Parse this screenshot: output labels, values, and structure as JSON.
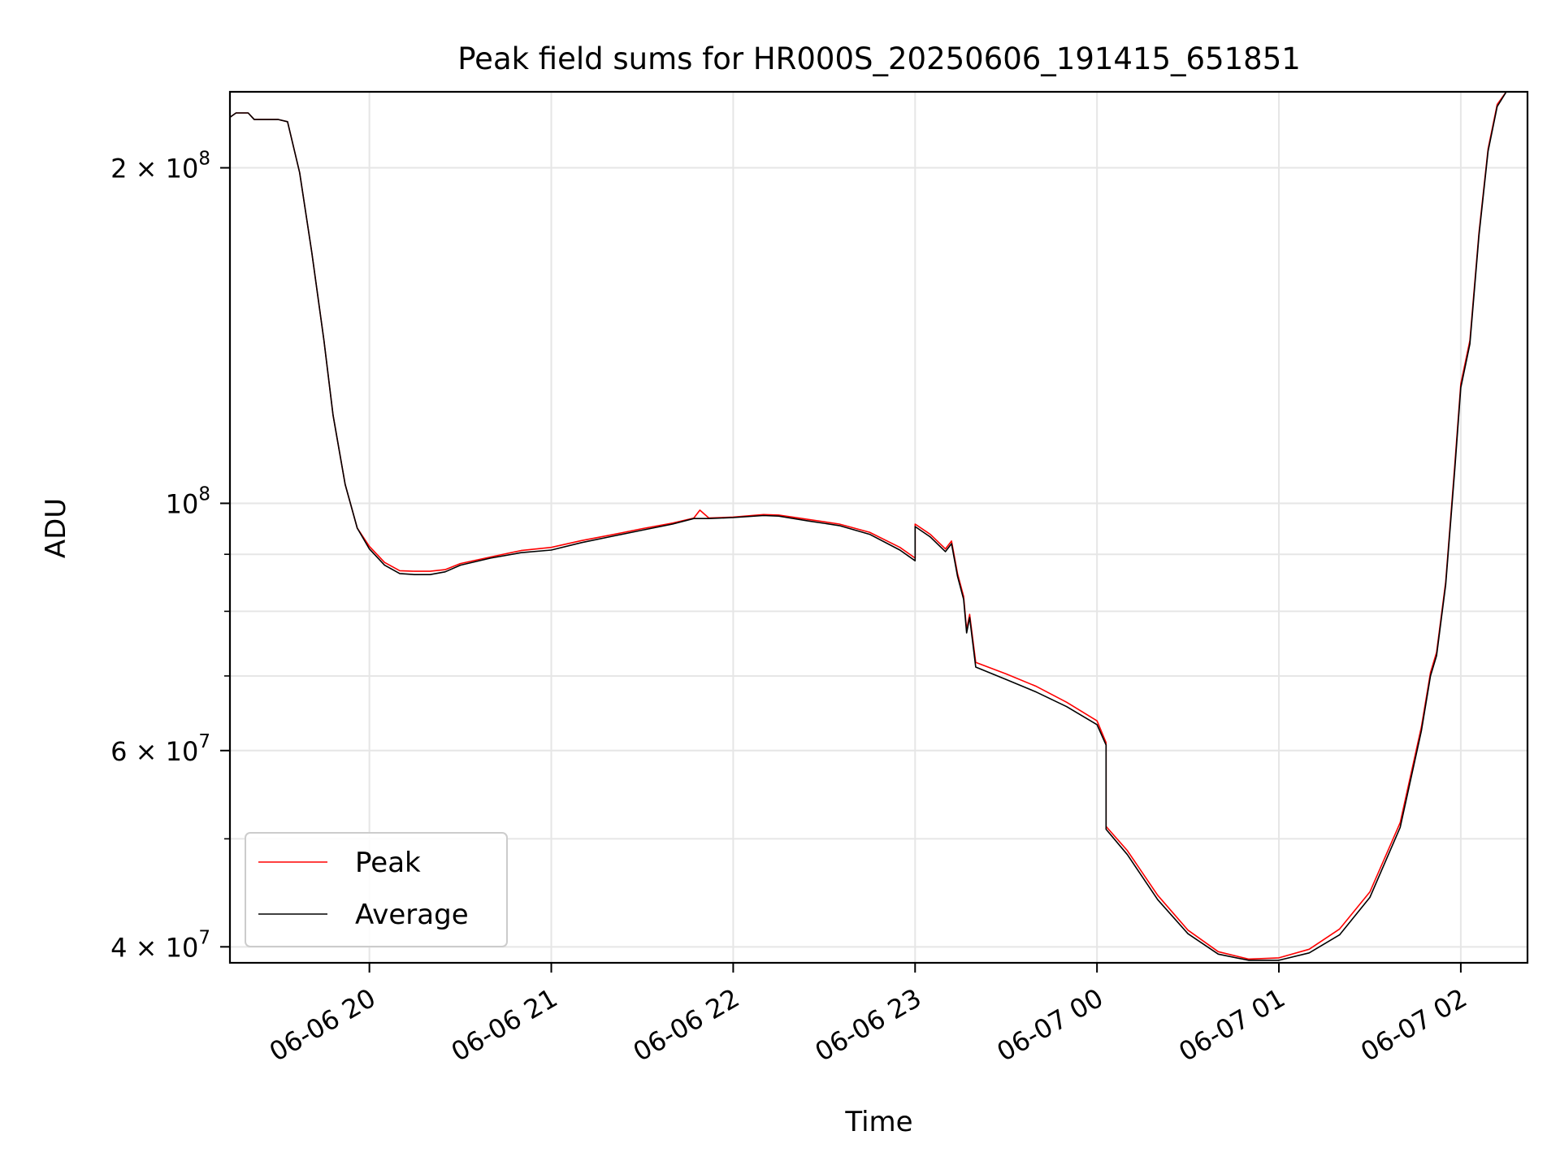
{
  "chart_data": {
    "type": "line",
    "title": "Peak field sums for HR000S_20250606_191415_651851",
    "xlabel": "Time",
    "ylabel": "ADU",
    "y_scale": "log",
    "ylim": [
      38700000,
      234000000
    ],
    "xlim": [
      "2025-06-06 19:14",
      "2025-06-07 02:22"
    ],
    "grid": true,
    "legend_position": "lower-left",
    "x_ticks": [
      {
        "t": "2025-06-06 20:00",
        "label": "06-06 20"
      },
      {
        "t": "2025-06-06 21:00",
        "label": "06-06 21"
      },
      {
        "t": "2025-06-06 22:00",
        "label": "06-06 22"
      },
      {
        "t": "2025-06-06 23:00",
        "label": "06-06 23"
      },
      {
        "t": "2025-06-07 00:00",
        "label": "06-07 00"
      },
      {
        "t": "2025-06-07 01:00",
        "label": "06-07 01"
      },
      {
        "t": "2025-06-07 02:00",
        "label": "06-07 02"
      }
    ],
    "y_major_ticks": [
      {
        "v": 40000000,
        "base": "4 × 10",
        "exp": "7"
      },
      {
        "v": 60000000,
        "base": "6 × 10",
        "exp": "7"
      },
      {
        "v": 100000000,
        "base": "10",
        "exp": "8"
      },
      {
        "v": 200000000,
        "base": "2 × 10",
        "exp": "8"
      }
    ],
    "y_minor_ticks": [
      50000000,
      70000000,
      80000000,
      90000000
    ],
    "series": [
      {
        "name": "Peak",
        "color": "#ff0000",
        "points": [
          [
            "2025-06-06 19:14",
            222000000
          ],
          [
            "2025-06-06 19:16",
            224000000
          ],
          [
            "2025-06-06 19:20",
            224000000
          ],
          [
            "2025-06-06 19:22",
            221000000
          ],
          [
            "2025-06-06 19:30",
            221000000
          ],
          [
            "2025-06-06 19:33",
            220000000
          ],
          [
            "2025-06-06 19:37",
            198000000
          ],
          [
            "2025-06-06 19:41",
            168000000
          ],
          [
            "2025-06-06 19:45",
            140000000
          ],
          [
            "2025-06-06 19:48",
            120000000
          ],
          [
            "2025-06-06 19:52",
            104000000
          ],
          [
            "2025-06-06 19:56",
            95000000
          ],
          [
            "2025-06-06 20:00",
            91500000
          ],
          [
            "2025-06-06 20:05",
            88500000
          ],
          [
            "2025-06-06 20:10",
            87000000
          ],
          [
            "2025-06-06 20:15",
            86900000
          ],
          [
            "2025-06-06 20:20",
            86900000
          ],
          [
            "2025-06-06 20:25",
            87200000
          ],
          [
            "2025-06-06 20:30",
            88300000
          ],
          [
            "2025-06-06 20:40",
            89500000
          ],
          [
            "2025-06-06 20:50",
            90700000
          ],
          [
            "2025-06-06 21:00",
            91300000
          ],
          [
            "2025-06-06 21:10",
            92600000
          ],
          [
            "2025-06-06 21:20",
            93700000
          ],
          [
            "2025-06-06 21:30",
            94900000
          ],
          [
            "2025-06-06 21:40",
            96000000
          ],
          [
            "2025-06-06 21:47",
            97000000
          ],
          [
            "2025-06-06 21:49",
            98600000
          ],
          [
            "2025-06-06 21:52",
            97000000
          ],
          [
            "2025-06-06 22:00",
            97200000
          ],
          [
            "2025-06-06 22:10",
            97700000
          ],
          [
            "2025-06-06 22:15",
            97600000
          ],
          [
            "2025-06-06 22:25",
            96700000
          ],
          [
            "2025-06-06 22:35",
            95800000
          ],
          [
            "2025-06-06 22:45",
            94200000
          ],
          [
            "2025-06-06 22:55",
            91300000
          ],
          [
            "2025-06-06 23:00",
            89300000
          ],
          [
            "2025-06-06 23:00",
            95800000
          ],
          [
            "2025-06-06 23:05",
            93800000
          ],
          [
            "2025-06-06 23:10",
            91000000
          ],
          [
            "2025-06-06 23:12",
            92500000
          ],
          [
            "2025-06-06 23:14",
            86500000
          ],
          [
            "2025-06-06 23:16",
            82500000
          ],
          [
            "2025-06-06 23:17",
            77000000
          ],
          [
            "2025-06-06 23:18",
            79500000
          ],
          [
            "2025-06-06 23:20",
            72000000
          ],
          [
            "2025-06-06 23:30",
            70300000
          ],
          [
            "2025-06-06 23:40",
            68500000
          ],
          [
            "2025-06-06 23:50",
            66300000
          ],
          [
            "2025-06-07 00:00",
            63800000
          ],
          [
            "2025-06-07 00:03",
            61000000
          ],
          [
            "2025-06-07 00:03",
            51300000
          ],
          [
            "2025-06-07 00:10",
            48800000
          ],
          [
            "2025-06-07 00:20",
            44500000
          ],
          [
            "2025-06-07 00:30",
            41400000
          ],
          [
            "2025-06-07 00:40",
            39600000
          ],
          [
            "2025-06-07 00:50",
            39000000
          ],
          [
            "2025-06-07 01:00",
            39100000
          ],
          [
            "2025-06-07 01:10",
            39800000
          ],
          [
            "2025-06-07 01:20",
            41500000
          ],
          [
            "2025-06-07 01:30",
            44800000
          ],
          [
            "2025-06-07 01:40",
            51700000
          ],
          [
            "2025-06-07 01:47",
            63000000
          ],
          [
            "2025-06-07 01:50",
            70500000
          ],
          [
            "2025-06-07 01:52",
            73500000
          ],
          [
            "2025-06-07 01:55",
            85000000
          ],
          [
            "2025-06-07 01:58",
            108000000
          ],
          [
            "2025-06-07 02:00",
            128000000
          ],
          [
            "2025-06-07 02:03",
            140000000
          ],
          [
            "2025-06-07 02:06",
            175000000
          ],
          [
            "2025-06-07 02:09",
            208000000
          ],
          [
            "2025-06-07 02:12",
            228000000
          ],
          [
            "2025-06-07 02:15",
            234000000
          ]
        ]
      },
      {
        "name": "Average",
        "color": "#000000",
        "points": [
          [
            "2025-06-06 19:14",
            222000000
          ],
          [
            "2025-06-06 19:16",
            224000000
          ],
          [
            "2025-06-06 19:20",
            224000000
          ],
          [
            "2025-06-06 19:22",
            221000000
          ],
          [
            "2025-06-06 19:30",
            221000000
          ],
          [
            "2025-06-06 19:33",
            220000000
          ],
          [
            "2025-06-06 19:37",
            198000000
          ],
          [
            "2025-06-06 19:41",
            168000000
          ],
          [
            "2025-06-06 19:45",
            140000000
          ],
          [
            "2025-06-06 19:48",
            120000000
          ],
          [
            "2025-06-06 19:52",
            104000000
          ],
          [
            "2025-06-06 19:56",
            95000000
          ],
          [
            "2025-06-06 20:00",
            91000000
          ],
          [
            "2025-06-06 20:05",
            88000000
          ],
          [
            "2025-06-06 20:10",
            86500000
          ],
          [
            "2025-06-06 20:15",
            86300000
          ],
          [
            "2025-06-06 20:20",
            86300000
          ],
          [
            "2025-06-06 20:25",
            86800000
          ],
          [
            "2025-06-06 20:30",
            88000000
          ],
          [
            "2025-06-06 20:40",
            89300000
          ],
          [
            "2025-06-06 20:50",
            90300000
          ],
          [
            "2025-06-06 21:00",
            90800000
          ],
          [
            "2025-06-06 21:10",
            92200000
          ],
          [
            "2025-06-06 21:20",
            93400000
          ],
          [
            "2025-06-06 21:30",
            94600000
          ],
          [
            "2025-06-06 21:40",
            95800000
          ],
          [
            "2025-06-06 21:47",
            96900000
          ],
          [
            "2025-06-06 21:52",
            96900000
          ],
          [
            "2025-06-06 22:00",
            97100000
          ],
          [
            "2025-06-06 22:10",
            97500000
          ],
          [
            "2025-06-06 22:15",
            97400000
          ],
          [
            "2025-06-06 22:25",
            96400000
          ],
          [
            "2025-06-06 22:35",
            95500000
          ],
          [
            "2025-06-06 22:45",
            93800000
          ],
          [
            "2025-06-06 22:55",
            90800000
          ],
          [
            "2025-06-06 23:00",
            88800000
          ],
          [
            "2025-06-06 23:00",
            95300000
          ],
          [
            "2025-06-06 23:05",
            93300000
          ],
          [
            "2025-06-06 23:10",
            90500000
          ],
          [
            "2025-06-06 23:12",
            92000000
          ],
          [
            "2025-06-06 23:14",
            86000000
          ],
          [
            "2025-06-06 23:16",
            82000000
          ],
          [
            "2025-06-06 23:17",
            76500000
          ],
          [
            "2025-06-06 23:18",
            79000000
          ],
          [
            "2025-06-06 23:20",
            71300000
          ],
          [
            "2025-06-06 23:30",
            69500000
          ],
          [
            "2025-06-06 23:40",
            67700000
          ],
          [
            "2025-06-06 23:50",
            65700000
          ],
          [
            "2025-06-07 00:00",
            63300000
          ],
          [
            "2025-06-07 00:03",
            60700000
          ],
          [
            "2025-06-07 00:03",
            51000000
          ],
          [
            "2025-06-07 00:10",
            48400000
          ],
          [
            "2025-06-07 00:20",
            44100000
          ],
          [
            "2025-06-07 00:30",
            41100000
          ],
          [
            "2025-06-07 00:40",
            39400000
          ],
          [
            "2025-06-07 00:50",
            38900000
          ],
          [
            "2025-06-07 01:00",
            38900000
          ],
          [
            "2025-06-07 01:10",
            39500000
          ],
          [
            "2025-06-07 01:20",
            41000000
          ],
          [
            "2025-06-07 01:30",
            44300000
          ],
          [
            "2025-06-07 01:40",
            51200000
          ],
          [
            "2025-06-07 01:47",
            62500000
          ],
          [
            "2025-06-07 01:50",
            70000000
          ],
          [
            "2025-06-07 01:52",
            73000000
          ],
          [
            "2025-06-07 01:55",
            84500000
          ],
          [
            "2025-06-07 01:58",
            107000000
          ],
          [
            "2025-06-07 02:00",
            127000000
          ],
          [
            "2025-06-07 02:03",
            139000000
          ],
          [
            "2025-06-07 02:06",
            174000000
          ],
          [
            "2025-06-07 02:09",
            207000000
          ],
          [
            "2025-06-07 02:12",
            227000000
          ],
          [
            "2025-06-07 02:15",
            234000000
          ]
        ]
      }
    ],
    "legend": [
      {
        "label": "Peak",
        "color": "#ff0000"
      },
      {
        "label": "Average",
        "color": "#000000"
      }
    ]
  }
}
